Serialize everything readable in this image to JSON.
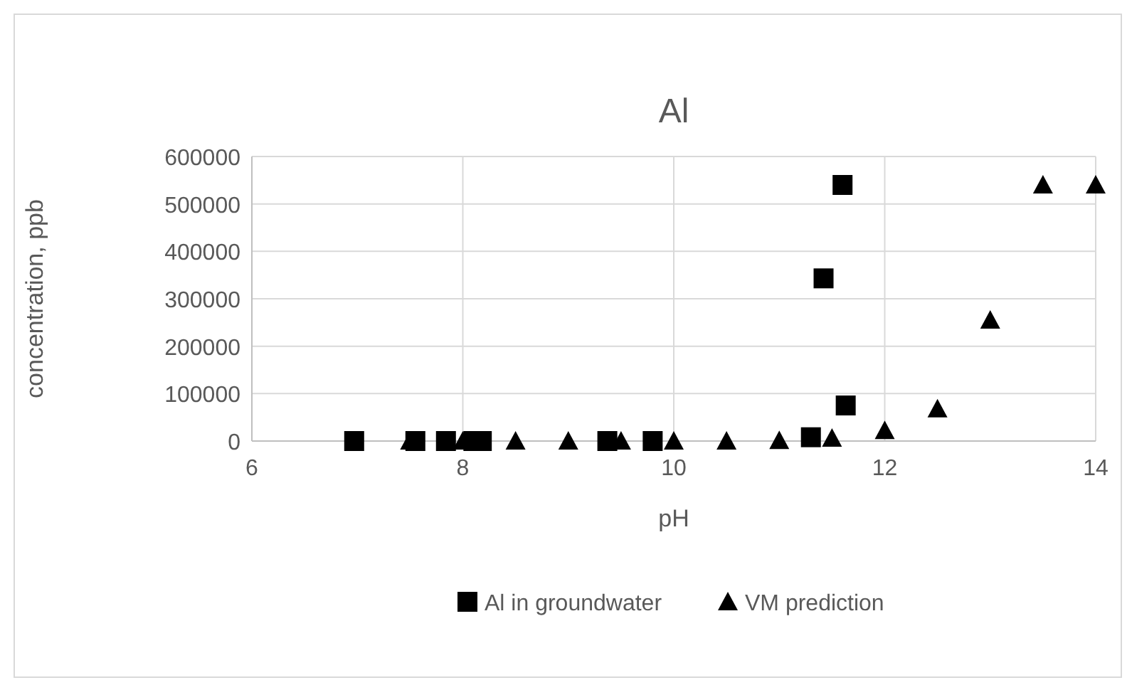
{
  "chart_data": {
    "type": "scatter",
    "title": "Al",
    "xlabel": "pH",
    "ylabel": "concentration, ppb",
    "xlim": [
      6,
      14
    ],
    "xticks": [
      6,
      8,
      10,
      12,
      14
    ],
    "ylim": [
      0,
      600000
    ],
    "yticks": [
      0,
      100000,
      200000,
      300000,
      400000,
      500000,
      600000
    ],
    "grid": true,
    "legend": "bottom",
    "series": [
      {
        "name": "Al in groundwater",
        "color": "#000000",
        "marker": "square",
        "x": [
          6.97,
          7.55,
          7.84,
          8.1,
          8.18,
          9.37,
          9.8,
          11.3,
          11.42,
          11.6,
          11.63
        ],
        "values": [
          0,
          0,
          0,
          0,
          0,
          0,
          0,
          8000,
          343000,
          540000,
          75000
        ]
      },
      {
        "name": "VM prediction",
        "color": "#000000",
        "marker": "triangle",
        "x": [
          7.5,
          8,
          8.5,
          9,
          9.5,
          10,
          10.5,
          11,
          11.5,
          12,
          12.5,
          13,
          13.5,
          14
        ],
        "values": [
          0,
          0,
          0,
          0,
          0,
          0,
          0,
          1000,
          6000,
          22000,
          68000,
          255000,
          540000,
          540000
        ]
      }
    ]
  }
}
